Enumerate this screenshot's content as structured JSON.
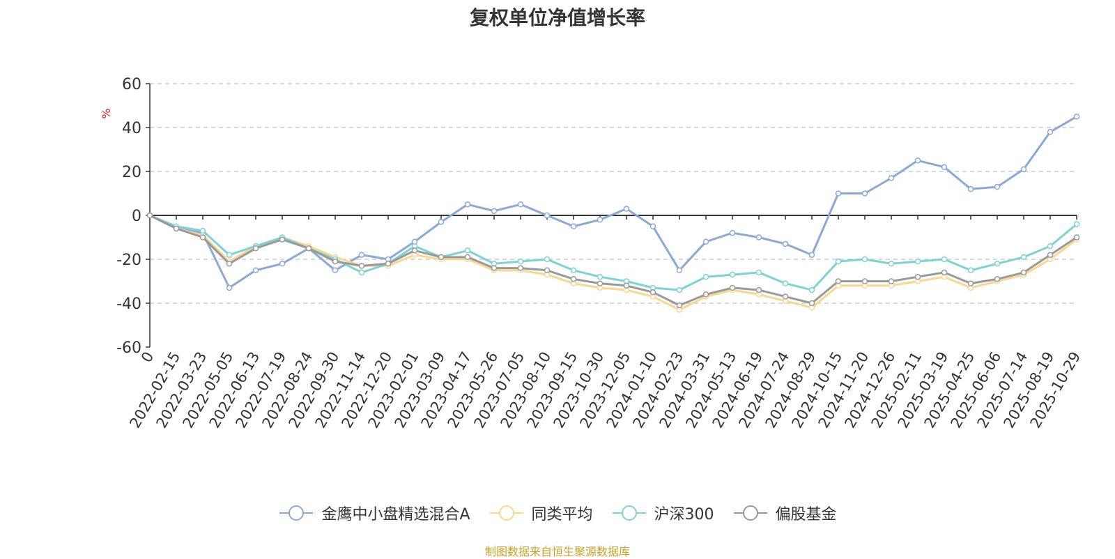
{
  "chart_data": {
    "type": "line",
    "title": "复权单位净值增长率",
    "ylabel": "%",
    "ylim": [
      -60,
      60
    ],
    "yticks": [
      -60,
      -40,
      -20,
      0,
      20,
      40,
      60
    ],
    "x_tick_labels": [
      "0",
      "2022-02-15",
      "2022-03-23",
      "2022-05-05",
      "2022-06-13",
      "2022-07-19",
      "2022-08-24",
      "2022-09-30",
      "2022-11-14",
      "2022-12-20",
      "2023-02-01",
      "2023-03-09",
      "2023-04-17",
      "2023-05-26",
      "2023-07-05",
      "2023-08-10",
      "2023-09-15",
      "2023-10-30",
      "2023-12-05",
      "2024-01-10",
      "2024-02-23",
      "2024-03-31",
      "2024-05-13",
      "2024-06-19",
      "2024-07-24",
      "2024-08-29",
      "2024-10-15",
      "2024-11-20",
      "2024-12-26",
      "2025-02-11",
      "2025-03-19",
      "2025-04-25",
      "2025-06-06",
      "2025-07-14",
      "2025-08-19",
      "2025-10-29"
    ],
    "grid": true,
    "legend_position": "bottom",
    "series": [
      {
        "name": "金鹰中小盘精选混合A",
        "color": "#8aa9d6",
        "values": [
          0,
          -6,
          -8,
          -33,
          -25,
          -22,
          -15,
          -25,
          -18,
          -20,
          -12,
          -3,
          5,
          2,
          5,
          0,
          -5,
          -2,
          3,
          -5,
          -25,
          -12,
          -8,
          -10,
          -13,
          -18,
          10,
          10,
          17,
          25,
          22,
          12,
          13,
          21,
          38,
          45
        ]
      },
      {
        "name": "同类平均",
        "color": "#fbd68f",
        "values": [
          0,
          -6,
          -9,
          -21,
          -14,
          -10,
          -14,
          -19,
          -23,
          -23,
          -18,
          -20,
          -20,
          -25,
          -25,
          -27,
          -31,
          -33,
          -34,
          -37,
          -43,
          -37,
          -34,
          -36,
          -39,
          -42,
          -32,
          -32,
          -32,
          -30,
          -28,
          -33,
          -30,
          -27,
          -20,
          -11
        ]
      },
      {
        "name": "沪深300",
        "color": "#7dd3d4",
        "values": [
          0,
          -5,
          -7,
          -18,
          -14,
          -10,
          -15,
          -20,
          -26,
          -22,
          -14,
          -19,
          -16,
          -22,
          -21,
          -20,
          -25,
          -28,
          -30,
          -33,
          -34,
          -28,
          -27,
          -26,
          -31,
          -34,
          -21,
          -20,
          -22,
          -21,
          -20,
          -25,
          -22,
          -19,
          -14,
          -4
        ]
      },
      {
        "name": "偏股基金",
        "color": "#999999",
        "values": [
          0,
          -6,
          -10,
          -22,
          -15,
          -11,
          -15,
          -21,
          -23,
          -22,
          -16,
          -19,
          -19,
          -24,
          -24,
          -25,
          -29,
          -31,
          -32,
          -35,
          -41,
          -36,
          -33,
          -34,
          -37,
          -40,
          -30,
          -30,
          -30,
          -28,
          -26,
          -31,
          -29,
          -26,
          -18,
          -10
        ]
      }
    ]
  },
  "source_note": "制图数据来自恒生聚源数据库"
}
